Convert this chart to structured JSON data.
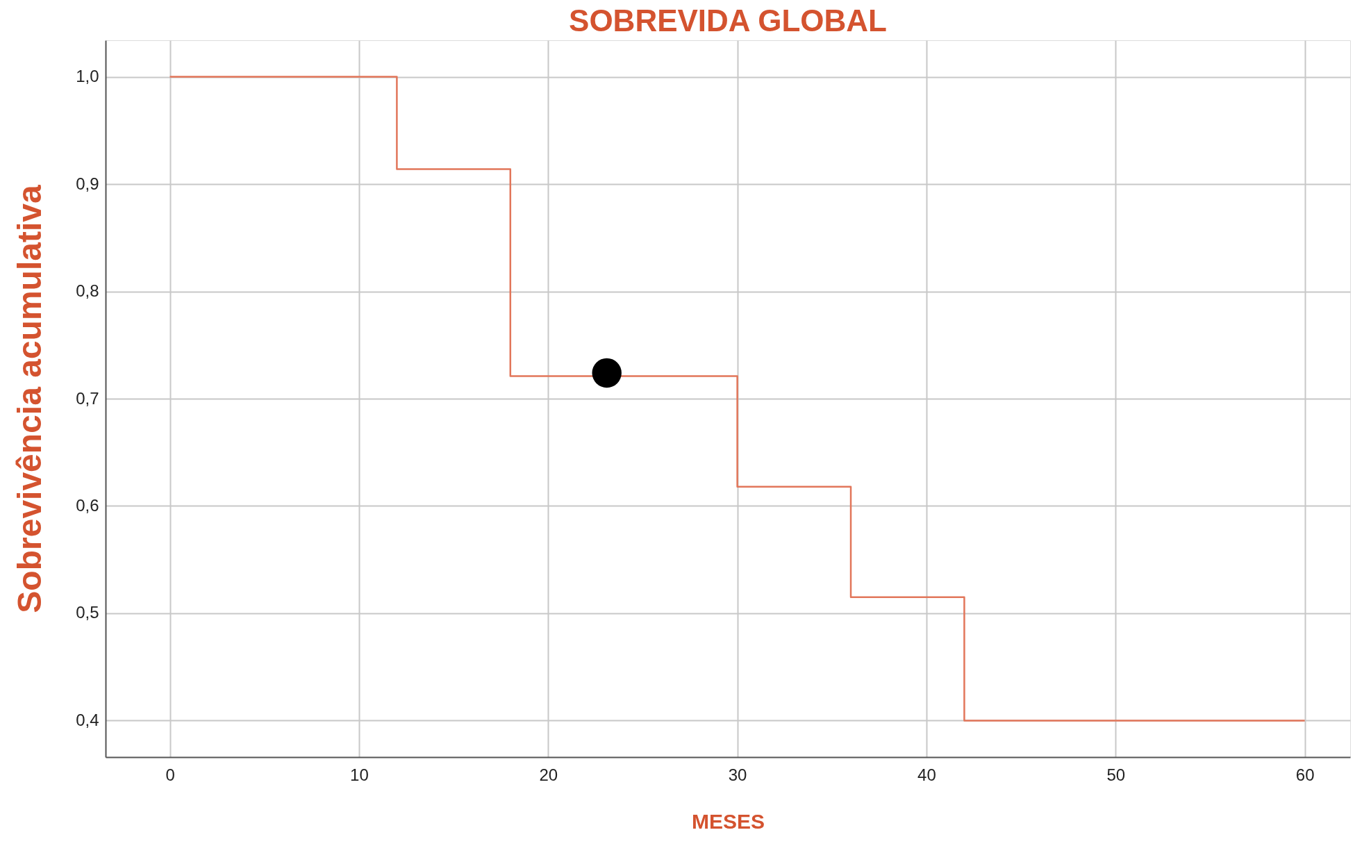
{
  "chart_data": {
    "type": "step",
    "title": "SOBREVIDA GLOBAL",
    "xlabel": "MESES",
    "ylabel": "Sobrevivência acumulativa",
    "series": [
      {
        "color": "#e2765a",
        "x": [
          0,
          12,
          18,
          30,
          36,
          42,
          60
        ],
        "values": [
          1.0,
          0.914,
          0.721,
          0.618,
          0.515,
          0.4,
          0.4
        ]
      },
      {
        "type": "scatter",
        "color": "#000000",
        "x": [
          23.1
        ],
        "values": [
          0.724
        ]
      }
    ],
    "xlim": [
      -3.4,
      62.4
    ],
    "ylim": [
      0.366,
      1.034
    ],
    "xticks": [
      0,
      10,
      20,
      30,
      40,
      50,
      60
    ],
    "yticks": [
      {
        "value": 0.4,
        "label": "0,4"
      },
      {
        "value": 0.5,
        "label": "0,5"
      },
      {
        "value": 0.6,
        "label": "0,6"
      },
      {
        "value": 0.7,
        "label": "0,7"
      },
      {
        "value": 0.8,
        "label": "0,8"
      },
      {
        "value": 0.9,
        "label": "0,9"
      },
      {
        "value": 1.0,
        "label": "1,0"
      }
    ],
    "grid": true
  }
}
